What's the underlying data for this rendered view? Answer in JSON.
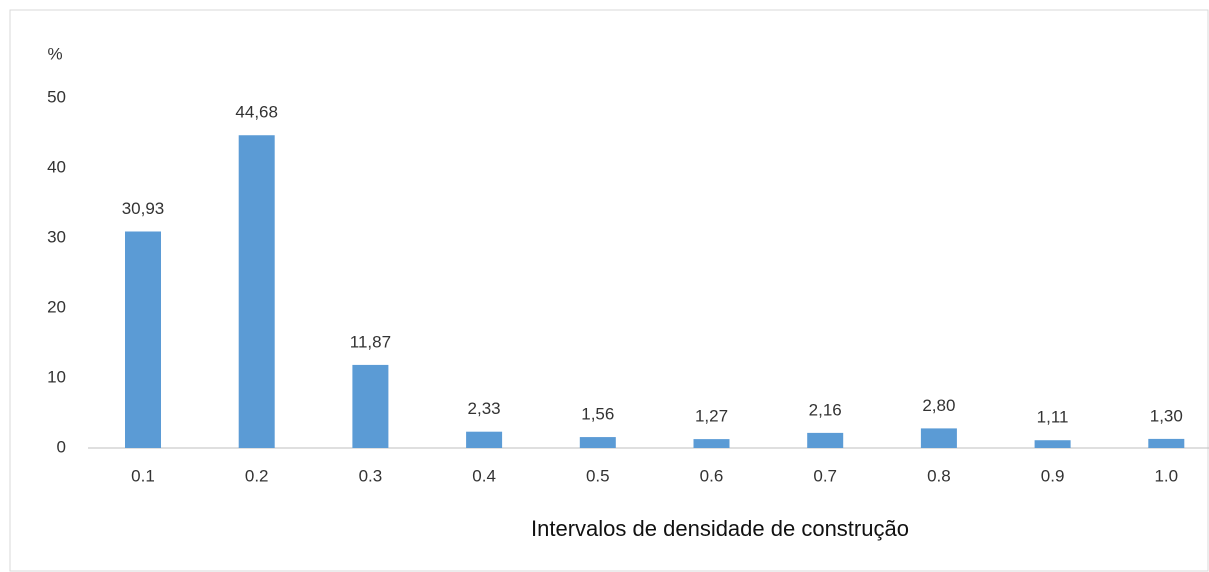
{
  "chart_data": {
    "type": "bar",
    "ylabel": "%",
    "xlabel": "Intervalos de densidade de construção",
    "categories": [
      "0.1",
      "0.2",
      "0.3",
      "0.4",
      "0.5",
      "0.6",
      "0.7",
      "0.8",
      "0.9",
      "1.0"
    ],
    "values": [
      30.93,
      44.68,
      11.87,
      2.33,
      1.56,
      1.27,
      2.16,
      2.8,
      1.11,
      1.3
    ],
    "value_labels": [
      "30,93",
      "44,68",
      "11,87",
      "2,33",
      "1,56",
      "1,27",
      "2,16",
      "2,80",
      "1,11",
      "1,30"
    ],
    "color": "#5b9bd5",
    "ylim": [
      0,
      50
    ],
    "yticks": [
      0,
      10,
      20,
      30,
      40,
      50
    ],
    "grid": false
  }
}
